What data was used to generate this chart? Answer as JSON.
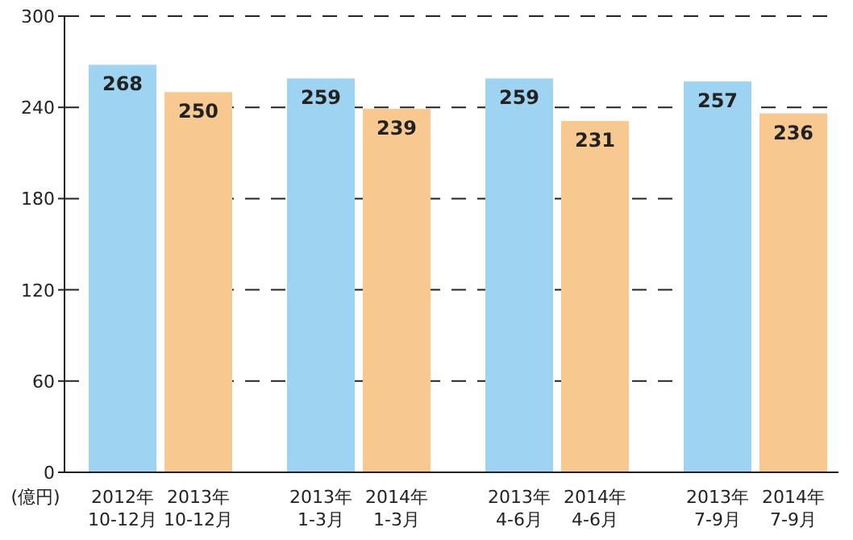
{
  "chart_data": {
    "type": "bar",
    "ylabel": "(億円)",
    "categories": [
      "2012年\n10-12月",
      "2013年\n10-12月",
      "2013年\n1-3月",
      "2014年\n1-3月",
      "2013年\n4-6月",
      "2014年\n4-6月",
      "2013年\n7-9月",
      "2014年\n7-9月"
    ],
    "values": [
      268,
      250,
      259,
      239,
      259,
      231,
      257,
      236
    ],
    "colors": [
      "#9fd3f2",
      "#f8c891",
      "#9fd3f2",
      "#f8c891",
      "#9fd3f2",
      "#f8c891",
      "#9fd3f2",
      "#f8c891"
    ],
    "ylim": [
      0,
      300
    ],
    "yticks": [
      0,
      60,
      120,
      180,
      240,
      300
    ],
    "grid": "y",
    "data_labels": true
  }
}
